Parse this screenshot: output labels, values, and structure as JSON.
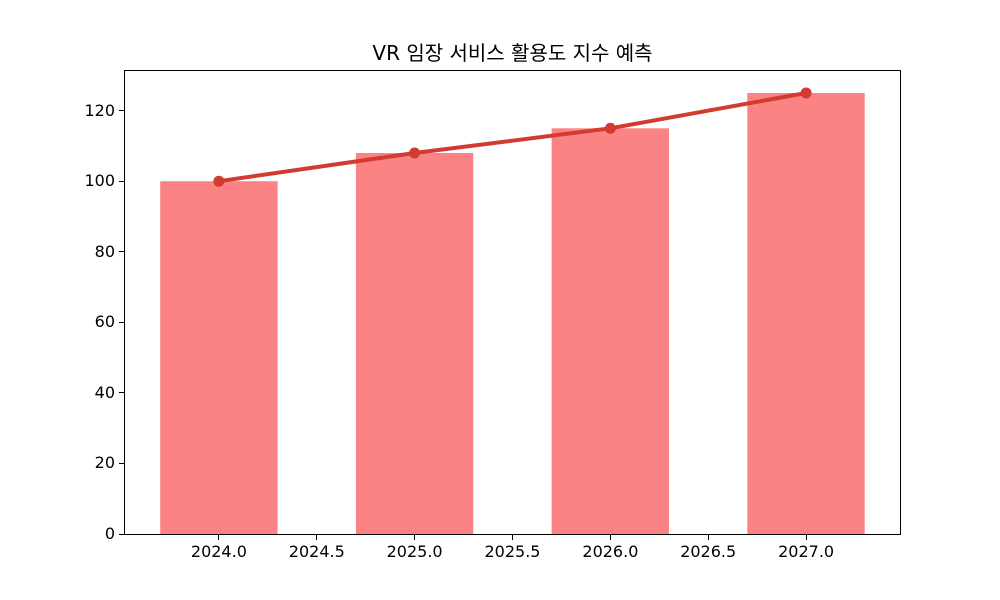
{
  "figure": {
    "background": "#ffffff",
    "spine_color": "#000000",
    "tick_color": "#000000"
  },
  "chart_data": {
    "type": "bar",
    "title": "VR 임장 서비스 활용도 지수 예측",
    "xlabel": "",
    "ylabel": "",
    "x": [
      2024,
      2025,
      2026,
      2027
    ],
    "series": [
      {
        "type": "bar",
        "values": [
          100,
          108,
          115,
          125
        ],
        "color": "#fc8383",
        "bar_width": 0.6
      },
      {
        "type": "line",
        "values": [
          100,
          108,
          115,
          125
        ],
        "color": "#d13b30",
        "marker": "circle",
        "line_width": 4,
        "marker_radius": 5.5
      }
    ],
    "xlim": [
      2023.52,
      2027.48
    ],
    "ylim": [
      0,
      131.25
    ],
    "xticks": {
      "values": [
        2024,
        2024.5,
        2025,
        2025.5,
        2026,
        2026.5,
        2027
      ],
      "labels": [
        "2024.0",
        "2024.5",
        "2025.0",
        "2025.5",
        "2026.0",
        "2026.5",
        "2027.0"
      ]
    },
    "yticks": {
      "values": [
        0,
        20,
        40,
        60,
        80,
        100,
        120
      ],
      "labels": [
        "0",
        "20",
        "40",
        "60",
        "80",
        "100",
        "120"
      ]
    },
    "grid": false,
    "legend": null
  }
}
